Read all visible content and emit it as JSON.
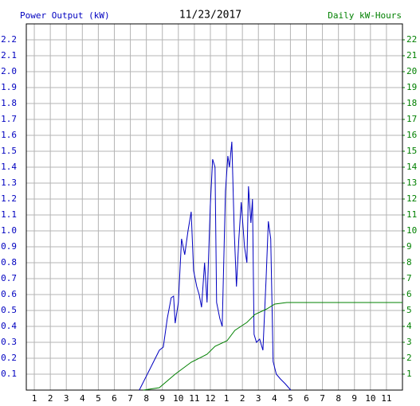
{
  "chart_data": {
    "type": "line",
    "title": "11/23/2017",
    "y_label": "Power Output (kW)",
    "y2_label": "Daily kW-Hours",
    "grid": true,
    "xlim": [
      0.5,
      24
    ],
    "xticks": [
      1,
      2,
      3,
      4,
      5,
      6,
      7,
      8,
      9,
      10,
      11,
      12,
      {
        "value": 13,
        "label": "1"
      },
      {
        "value": 14,
        "label": "2"
      },
      {
        "value": 15,
        "label": "3"
      },
      {
        "value": 16,
        "label": "4"
      },
      {
        "value": 17,
        "label": "5"
      },
      {
        "value": 18,
        "label": "6"
      },
      {
        "value": 19,
        "label": "7"
      },
      {
        "value": 20,
        "label": "8"
      },
      {
        "value": 21,
        "label": "9"
      },
      {
        "value": 22,
        "label": "10"
      },
      {
        "value": 23,
        "label": "11"
      }
    ],
    "ylim": [
      0,
      2.3
    ],
    "yticks": [
      0.1,
      0.2,
      0.3,
      0.4,
      0.5,
      0.6,
      0.7,
      0.8,
      0.9,
      {
        "value": 1,
        "label": "1.0"
      },
      1.1,
      1.2,
      1.3,
      1.4,
      1.5,
      1.6,
      1.7,
      1.8,
      1.9,
      {
        "value": 2,
        "label": "2.0"
      },
      2.1,
      2.2
    ],
    "y2lim": [
      0,
      23
    ],
    "y2ticks": [
      1,
      2,
      3,
      4,
      5,
      6,
      7,
      8,
      9,
      10,
      11,
      12,
      13,
      14,
      15,
      16,
      17,
      18,
      19,
      20,
      21,
      22
    ],
    "series": [
      {
        "name": "Power Output (kW)",
        "color": "#0000c0",
        "axis": "y",
        "x": [
          7.56,
          8.31,
          8.81,
          9.06,
          9.31,
          9.55,
          9.7,
          9.8,
          10.0,
          10.2,
          10.4,
          10.6,
          10.8,
          10.95,
          11.15,
          11.3,
          11.45,
          11.64,
          11.79,
          11.99,
          12.14,
          12.29,
          12.39,
          12.59,
          12.74,
          12.94,
          13.09,
          13.19,
          13.34,
          13.49,
          13.63,
          13.78,
          13.93,
          14.13,
          14.28,
          14.38,
          14.53,
          14.63,
          14.73,
          14.88,
          15.08,
          15.28,
          15.48,
          15.62,
          15.77,
          15.92,
          16.12,
          16.37,
          16.67,
          17.02
        ],
        "values": [
          0,
          0.15,
          0.25,
          0.27,
          0.45,
          0.58,
          0.59,
          0.42,
          0.55,
          0.95,
          0.85,
          1.0,
          1.12,
          0.75,
          0.65,
          0.6,
          0.52,
          0.8,
          0.55,
          1.15,
          1.45,
          1.4,
          0.55,
          0.45,
          0.4,
          1.25,
          1.47,
          1.4,
          1.56,
          1.0,
          0.65,
          0.95,
          1.18,
          0.9,
          0.8,
          1.28,
          1.05,
          1.2,
          0.35,
          0.3,
          0.32,
          0.25,
          0.7,
          1.06,
          0.95,
          0.18,
          0.1,
          0.07,
          0.04,
          0
        ]
      },
      {
        "name": "Daily kW-Hours",
        "color": "#008000",
        "axis": "y2",
        "x": [
          7.81,
          8.81,
          9.8,
          10.8,
          11.79,
          12.29,
          13.04,
          13.53,
          14.28,
          14.78,
          15.53,
          16.02,
          16.77,
          24
        ],
        "values": [
          0,
          0.15,
          1.0,
          1.75,
          2.25,
          2.75,
          3.1,
          3.75,
          4.25,
          4.75,
          5.1,
          5.4,
          5.5,
          5.5
        ]
      }
    ]
  }
}
